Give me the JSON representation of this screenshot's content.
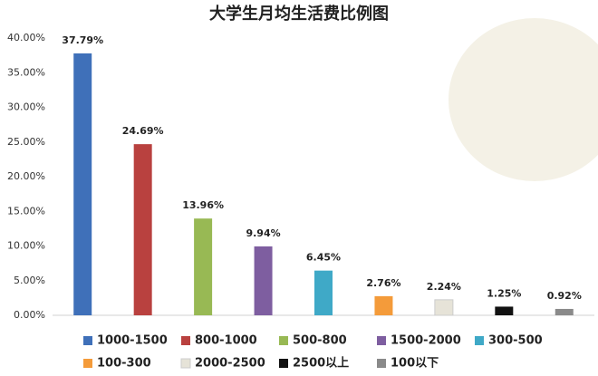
{
  "chart_data": {
    "type": "bar",
    "title": "大学生月均生活费比例图",
    "categories": [
      "1000-1500",
      "800-1000",
      "500-800",
      "1500-2000",
      "300-500",
      "100-300",
      "2000-2500",
      "2500以上",
      "100以下"
    ],
    "values": [
      37.79,
      24.69,
      13.96,
      9.94,
      6.45,
      2.76,
      2.24,
      1.25,
      0.92
    ],
    "value_labels": [
      "37.79%",
      "24.69%",
      "13.96%",
      "9.94%",
      "6.45%",
      "2.76%",
      "2.24%",
      "1.25%",
      "0.92%"
    ],
    "colors": [
      "#3f70b9",
      "#b9413f",
      "#98b954",
      "#7e5ea0",
      "#3fa9c7",
      "#f49b3a",
      "#e6e3d8",
      "#111111",
      "#8a8a8a"
    ],
    "ylim": [
      0,
      40
    ],
    "yticks": [
      {
        "value": 0,
        "label": "0.00%"
      },
      {
        "value": 5,
        "label": "5.00%"
      },
      {
        "value": 10,
        "label": "10.00%"
      },
      {
        "value": 15,
        "label": "15.00%"
      },
      {
        "value": 20,
        "label": "20.00%"
      },
      {
        "value": 25,
        "label": "25.00%"
      },
      {
        "value": 30,
        "label": "30.00%"
      },
      {
        "value": 35,
        "label": "35.00%"
      },
      {
        "value": 40,
        "label": "40.00%"
      }
    ],
    "grid": false,
    "legend": "bottom"
  }
}
